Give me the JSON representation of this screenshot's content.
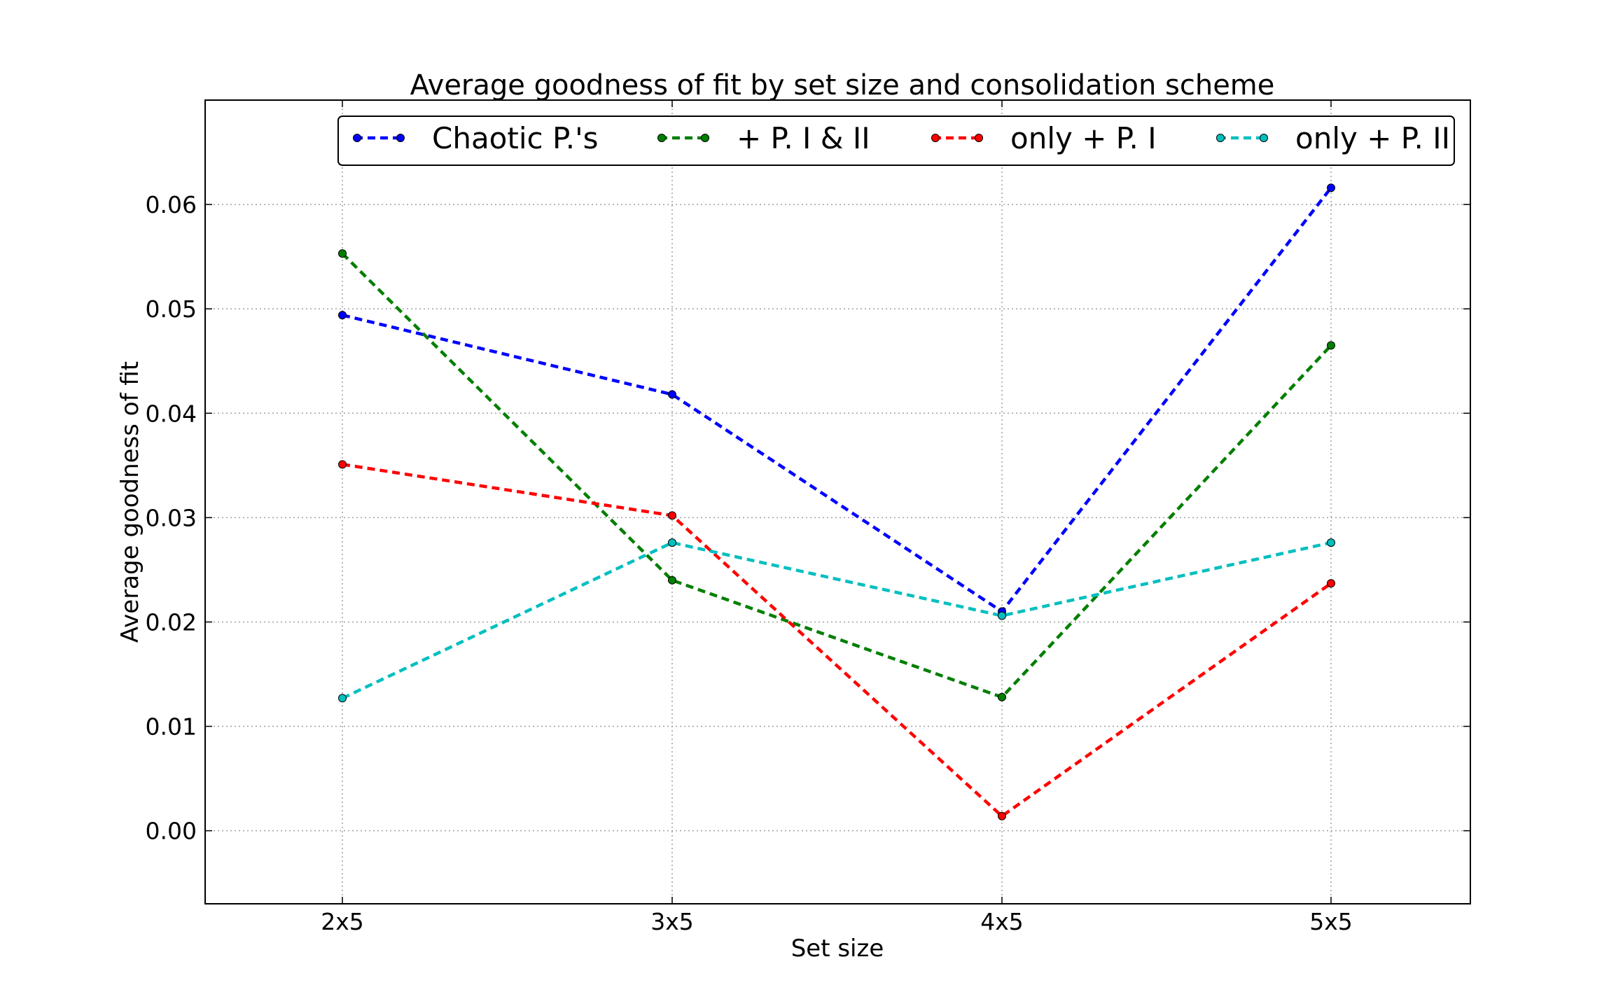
{
  "chart_data": {
    "type": "line",
    "title": "Average goodness of fit by set size and consolidation scheme",
    "xlabel": "Set size",
    "ylabel": "Average goodness of fit",
    "categories": [
      "2x5",
      "3x5",
      "4x5",
      "5x5"
    ],
    "ylim": [
      -0.007,
      0.07
    ],
    "yticks": [
      0.0,
      0.01,
      0.02,
      0.03,
      0.04,
      0.05,
      0.06
    ],
    "ytick_labels": [
      "0.00",
      "0.01",
      "0.02",
      "0.03",
      "0.04",
      "0.05",
      "0.06"
    ],
    "grid": true,
    "legend_position": "top",
    "series": [
      {
        "name": "Chaotic P.'s",
        "color": "#0000ff",
        "values": [
          0.0494,
          0.0418,
          0.021,
          0.0616
        ]
      },
      {
        "name": "+ P. I & II",
        "color": "#007f00",
        "values": [
          0.0553,
          0.024,
          0.0128,
          0.0465
        ]
      },
      {
        "name": "only + P. I",
        "color": "#ff0000",
        "values": [
          0.0351,
          0.0302,
          0.0014,
          0.0237
        ]
      },
      {
        "name": "only + P. II",
        "color": "#00bfbf",
        "values": [
          0.0127,
          0.0276,
          0.0206,
          0.0276
        ]
      }
    ]
  }
}
